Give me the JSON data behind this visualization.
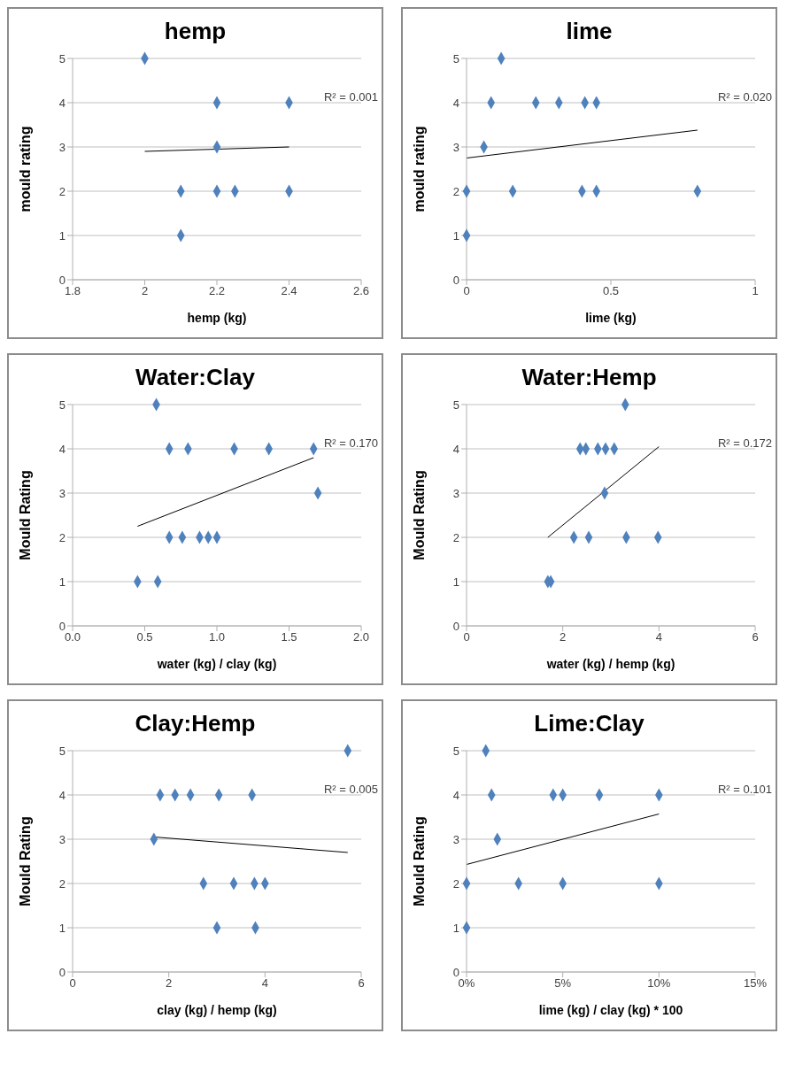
{
  "chart_data": [
    {
      "type": "scatter",
      "title": "hemp",
      "xlabel": "hemp (kg)",
      "ylabel": "mould rating",
      "xlim": [
        1.8,
        2.6
      ],
      "xticks": [
        1.8,
        2,
        2.2,
        2.4,
        2.6
      ],
      "ylim": [
        0,
        5
      ],
      "yticks": [
        0,
        1,
        2,
        3,
        4,
        5
      ],
      "grid": "y",
      "annotations": [
        "R² = 0.001"
      ],
      "series": [
        {
          "marker": "diamond",
          "color": "#4f81bd",
          "x": [
            2,
            2.2,
            2.4,
            2.2,
            2.1,
            2.2,
            2.25,
            2.4,
            2.1
          ],
          "values": [
            5,
            4,
            4,
            3,
            2,
            2,
            2,
            2,
            1
          ]
        },
        {
          "type": "line",
          "marker": "none",
          "color": "#000000",
          "x": [
            2,
            2.4
          ],
          "values": [
            2.9,
            3.0
          ]
        }
      ]
    },
    {
      "type": "scatter",
      "title": "lime",
      "xlabel": "lime (kg)",
      "ylabel": "mould rating",
      "xlim": [
        0,
        1
      ],
      "xticks": [
        0,
        0.5,
        1
      ],
      "ylim": [
        0,
        5
      ],
      "yticks": [
        0,
        1,
        2,
        3,
        4,
        5
      ],
      "grid": "y",
      "annotations": [
        "R² = 0.020"
      ],
      "series": [
        {
          "marker": "diamond",
          "color": "#4f81bd",
          "x": [
            0.12,
            0.085,
            0.24,
            0.32,
            0.41,
            0.45,
            0.06,
            0,
            0.16,
            0.4,
            0.45,
            0.8,
            0
          ],
          "values": [
            5,
            4,
            4,
            4,
            4,
            4,
            3,
            2,
            2,
            2,
            2,
            2,
            1
          ]
        },
        {
          "type": "line",
          "marker": "none",
          "color": "#000000",
          "x": [
            0,
            0.8
          ],
          "values": [
            2.75,
            3.38
          ]
        }
      ]
    },
    {
      "type": "scatter",
      "title": "Water:Clay",
      "xlabel": "water (kg) / clay (kg)",
      "ylabel": "Mould Rating",
      "xlim": [
        0,
        2
      ],
      "xticks": [
        {
          "value": 0,
          "label": "0.0"
        },
        {
          "value": 0.5,
          "label": "0.5"
        },
        {
          "value": 1,
          "label": "1.0"
        },
        {
          "value": 1.5,
          "label": "1.5"
        },
        {
          "value": 2,
          "label": "2.0"
        }
      ],
      "ylim": [
        0,
        5
      ],
      "yticks": [
        0,
        1,
        2,
        3,
        4,
        5
      ],
      "grid": "y",
      "annotations": [
        "R² = 0.170"
      ],
      "series": [
        {
          "marker": "diamond",
          "color": "#4f81bd",
          "x": [
            0.58,
            0.67,
            0.8,
            1.12,
            1.36,
            1.67,
            1.7,
            0.67,
            0.76,
            0.88,
            0.94,
            1.0,
            0.45,
            0.59
          ],
          "values": [
            5,
            4,
            4,
            4,
            4,
            4,
            3,
            2,
            2,
            2,
            2,
            2,
            1,
            1
          ]
        },
        {
          "type": "line",
          "marker": "none",
          "color": "#000000",
          "x": [
            0.45,
            1.67
          ],
          "values": [
            2.25,
            3.8
          ]
        }
      ]
    },
    {
      "type": "scatter",
      "title": "Water:Hemp",
      "xlabel": "water (kg) / hemp (kg)",
      "ylabel": "Mould Rating",
      "xlim": [
        0,
        6
      ],
      "xticks": [
        0,
        2,
        4,
        6
      ],
      "ylim": [
        0,
        5
      ],
      "yticks": [
        0,
        1,
        2,
        3,
        4,
        5
      ],
      "grid": "y",
      "annotations": [
        "R² = 0.172"
      ],
      "series": [
        {
          "marker": "diamond",
          "color": "#4f81bd",
          "x": [
            3.3,
            2.36,
            2.48,
            2.73,
            2.89,
            3.07,
            2.87,
            2.23,
            2.54,
            3.32,
            3.98,
            1.69,
            1.75
          ],
          "values": [
            5,
            4,
            4,
            4,
            4,
            4,
            3,
            2,
            2,
            2,
            2,
            1,
            1
          ]
        },
        {
          "type": "line",
          "marker": "none",
          "color": "#000000",
          "x": [
            1.69,
            4.0
          ],
          "values": [
            2.0,
            4.05
          ]
        }
      ]
    },
    {
      "type": "scatter",
      "title": "Clay:Hemp",
      "xlabel": "clay (kg) / hemp (kg)",
      "ylabel": "Mould Rating",
      "xlim": [
        0,
        6
      ],
      "xticks": [
        0,
        2,
        4,
        6
      ],
      "ylim": [
        0,
        5
      ],
      "yticks": [
        0,
        1,
        2,
        3,
        4,
        5
      ],
      "grid": "y",
      "annotations": [
        "R² = 0.005"
      ],
      "series": [
        {
          "marker": "diamond",
          "color": "#4f81bd",
          "x": [
            5.72,
            1.82,
            2.13,
            2.45,
            3.04,
            3.73,
            1.69,
            2.72,
            3.35,
            3.78,
            4.0,
            3.0,
            3.8
          ],
          "values": [
            5,
            4,
            4,
            4,
            4,
            4,
            3,
            2,
            2,
            2,
            2,
            1,
            1
          ]
        },
        {
          "type": "line",
          "marker": "none",
          "color": "#000000",
          "x": [
            1.7,
            5.72
          ],
          "values": [
            3.05,
            2.7
          ]
        }
      ]
    },
    {
      "type": "scatter",
      "title": "Lime:Clay",
      "xlabel": "lime (kg) / clay (kg) * 100",
      "ylabel": "Mould Rating",
      "xlim": [
        0,
        15
      ],
      "xticks": [
        {
          "value": 0,
          "label": "0%"
        },
        {
          "value": 5,
          "label": "5%"
        },
        {
          "value": 10,
          "label": "10%"
        },
        {
          "value": 15,
          "label": "15%"
        }
      ],
      "ylim": [
        0,
        5
      ],
      "yticks": [
        0,
        1,
        2,
        3,
        4,
        5
      ],
      "grid": "y",
      "annotations": [
        "R² = 0.101"
      ],
      "series": [
        {
          "marker": "diamond",
          "color": "#4f81bd",
          "x": [
            1.0,
            1.3,
            4.5,
            5.0,
            6.9,
            10,
            1.6,
            0,
            2.7,
            5.0,
            10,
            0
          ],
          "values": [
            5,
            4,
            4,
            4,
            4,
            4,
            3,
            2,
            2,
            2,
            2,
            1
          ]
        },
        {
          "type": "line",
          "marker": "none",
          "color": "#000000",
          "x": [
            0,
            10
          ],
          "values": [
            2.43,
            3.57
          ]
        }
      ]
    }
  ]
}
